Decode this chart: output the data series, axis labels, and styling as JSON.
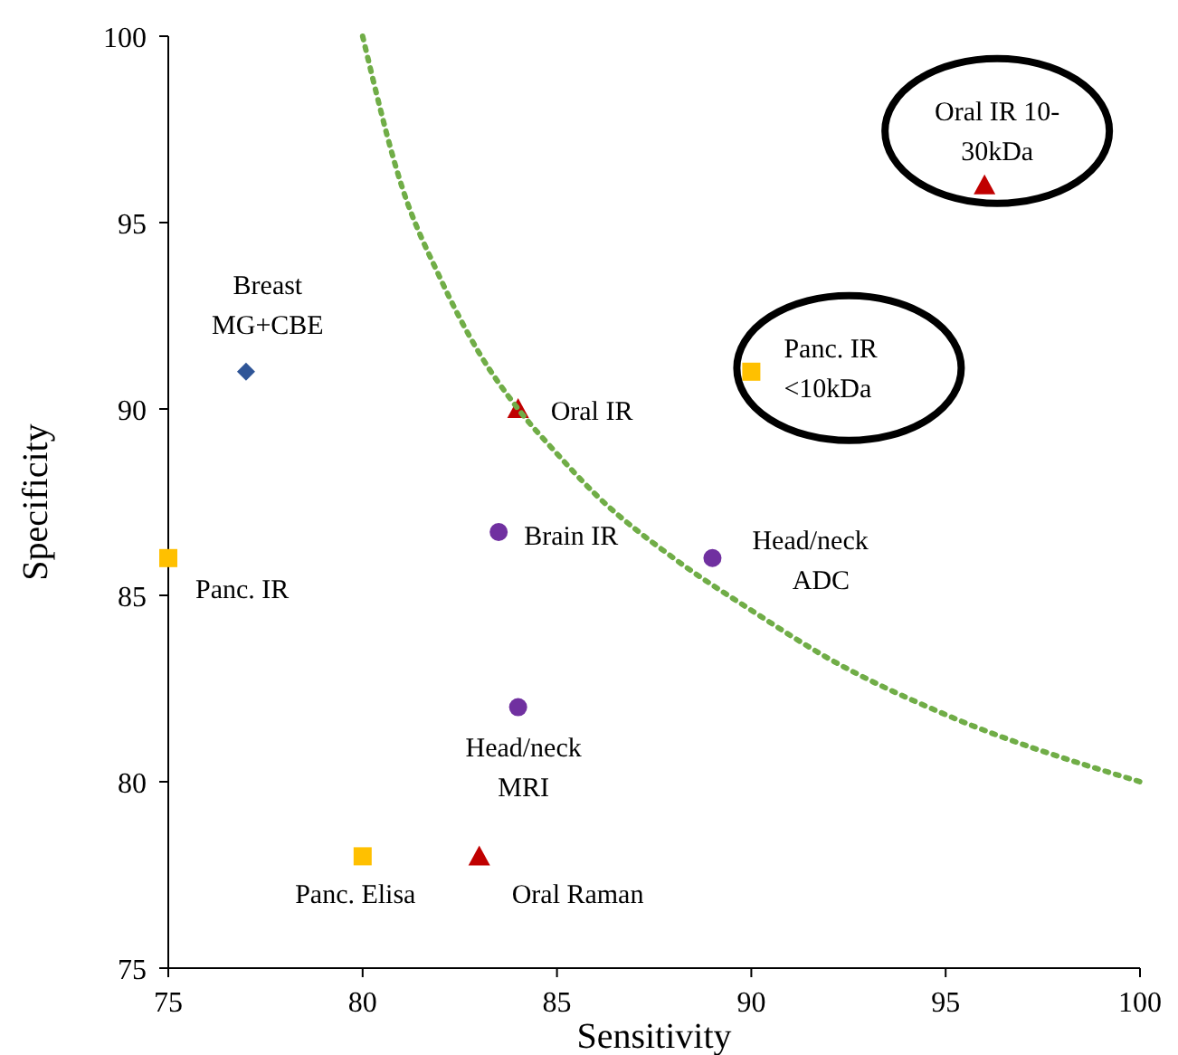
{
  "chart_data": {
    "type": "scatter",
    "xlabel": "Sensitivity",
    "ylabel": "Specificity",
    "xlim": [
      75,
      100
    ],
    "ylim": [
      75,
      100
    ],
    "xticks": [
      75,
      80,
      85,
      90,
      95,
      100
    ],
    "yticks": [
      75,
      80,
      85,
      90,
      95,
      100
    ],
    "grid": false,
    "series": [
      {
        "color": "#2f5597",
        "marker": "diamond",
        "x": [
          77
        ],
        "values": [
          91
        ]
      },
      {
        "color": "#ffc000",
        "marker": "square",
        "x": [
          75,
          80,
          90
        ],
        "values": [
          86,
          78,
          91
        ]
      },
      {
        "color": "#c00000",
        "marker": "triangle",
        "x": [
          84,
          83,
          96
        ],
        "values": [
          90,
          78,
          96
        ]
      },
      {
        "color": "#7030a0",
        "marker": "circle",
        "x": [
          83.5,
          89,
          84
        ],
        "values": [
          86.7,
          86,
          82
        ]
      },
      {
        "type": "line",
        "color": "#70ad47",
        "marker": "none",
        "line_style": "dotted",
        "x": [
          80,
          81,
          82,
          83,
          84,
          85,
          86,
          88,
          90,
          92,
          95,
          100
        ],
        "values": [
          100,
          96,
          93.5,
          91.5,
          90,
          88.8,
          87.7,
          86,
          84.6,
          83.3,
          81.8,
          80
        ]
      }
    ],
    "annotations": [
      {
        "text": "Breast\nMG+CBE",
        "x": 77,
        "y": 91
      },
      {
        "text": "Panc. IR",
        "x": 75,
        "y": 86
      },
      {
        "text": "Panc. Elisa",
        "x": 80,
        "y": 78
      },
      {
        "text": "Oral Raman",
        "x": 83,
        "y": 78
      },
      {
        "text": "Oral IR",
        "x": 84,
        "y": 90
      },
      {
        "text": "Oral IR 10-\n30kDa",
        "x": 96,
        "y": 96
      },
      {
        "text": "Panc. IR\n<10kDa",
        "x": 90,
        "y": 91
      },
      {
        "text": "Brain IR",
        "x": 83.5,
        "y": 86.7
      },
      {
        "text": "Head/neck\nADC",
        "x": 89,
        "y": 86
      },
      {
        "text": "Head/neck\nMRI",
        "x": 84,
        "y": 82
      }
    ]
  }
}
